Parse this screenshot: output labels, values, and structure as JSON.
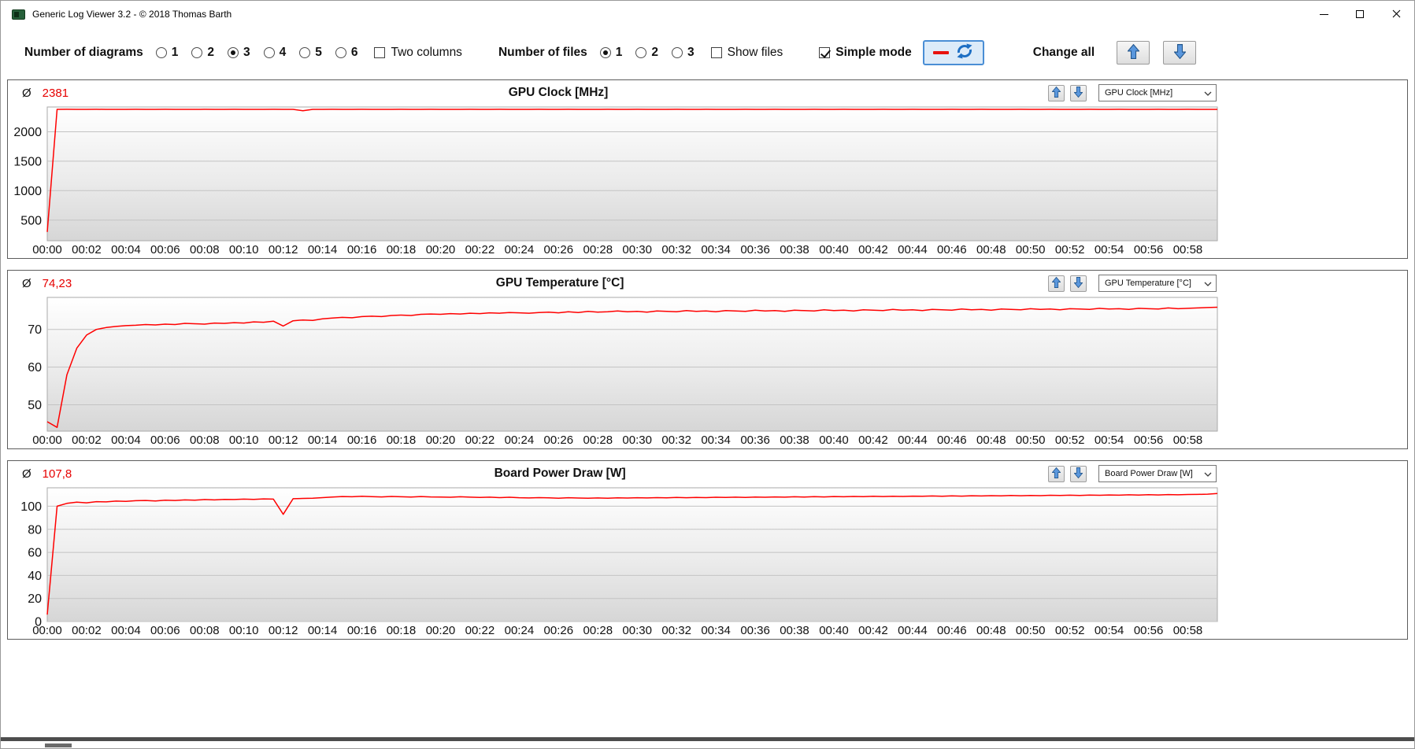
{
  "window": {
    "title": "Generic Log Viewer 3.2 - © 2018 Thomas Barth",
    "controls": [
      "minimize",
      "maximize",
      "close"
    ]
  },
  "toolbar": {
    "diagrams_label": "Number of diagrams",
    "diagram_options": [
      "1",
      "2",
      "3",
      "4",
      "5",
      "6"
    ],
    "diagrams_selected": "3",
    "two_columns": {
      "label": "Two columns",
      "checked": false
    },
    "files_label": "Number of files",
    "file_options": [
      "1",
      "2",
      "3"
    ],
    "files_selected": "1",
    "show_files": {
      "label": "Show files",
      "checked": false
    },
    "simple_mode": {
      "label": "Simple mode",
      "checked": true
    },
    "change_all_label": "Change all",
    "line_sample_color": "#e8120e",
    "arrow_color": "#5a97dd"
  },
  "time_ticks": [
    "00:00",
    "00:02",
    "00:04",
    "00:06",
    "00:08",
    "00:10",
    "00:12",
    "00:14",
    "00:16",
    "00:18",
    "00:20",
    "00:22",
    "00:24",
    "00:26",
    "00:28",
    "00:30",
    "00:32",
    "00:34",
    "00:36",
    "00:38",
    "00:40",
    "00:42",
    "00:44",
    "00:46",
    "00:48",
    "00:50",
    "00:52",
    "00:54",
    "00:56",
    "00:58"
  ],
  "chart_data": [
    {
      "id": 0,
      "type": "line",
      "title": "GPU Clock [MHz]",
      "avg_symbol": "Ø",
      "avg_value": "2381",
      "avg_color": "#e60000",
      "dropdown_value": "GPU Clock [MHz]",
      "line_color": "#ff0000",
      "ylim": [
        150,
        2420
      ],
      "y_ticks": [
        500,
        1000,
        1500,
        2000
      ],
      "x_step_seconds": 30,
      "x_max_seconds": 3570,
      "values": [
        300,
        2380,
        2381,
        2380,
        2380,
        2381,
        2380,
        2380,
        2380,
        2381,
        2380,
        2380,
        2381,
        2380,
        2380,
        2380,
        2381,
        2380,
        2380,
        2381,
        2380,
        2380,
        2380,
        2381,
        2380,
        2380,
        2356,
        2380,
        2380,
        2381,
        2380,
        2380,
        2381,
        2380,
        2380,
        2380,
        2381,
        2380,
        2380,
        2381,
        2380,
        2380,
        2380,
        2381,
        2380,
        2380,
        2381,
        2380,
        2380,
        2380,
        2381,
        2380,
        2380,
        2381,
        2380,
        2380,
        2380,
        2381,
        2380,
        2380,
        2381,
        2380,
        2380,
        2380,
        2381,
        2380,
        2380,
        2381,
        2380,
        2380,
        2380,
        2381,
        2380,
        2380,
        2381,
        2380,
        2380,
        2380,
        2381,
        2380,
        2380,
        2381,
        2380,
        2380,
        2380,
        2381,
        2380,
        2380,
        2381,
        2380,
        2380,
        2380,
        2381,
        2380,
        2380,
        2381,
        2380,
        2380,
        2380,
        2381,
        2380,
        2380,
        2381,
        2380,
        2380,
        2380,
        2381,
        2380,
        2380,
        2381,
        2380,
        2380,
        2380,
        2381,
        2380,
        2380,
        2381,
        2380,
        2380,
        2380
      ]
    },
    {
      "id": 1,
      "type": "line",
      "title": "GPU Temperature [°C]",
      "avg_symbol": "Ø",
      "avg_value": "74,23",
      "avg_color": "#e60000",
      "dropdown_value": "GPU Temperature [°C]",
      "line_color": "#ff0000",
      "ylim": [
        43,
        78.5
      ],
      "y_ticks": [
        50,
        60,
        70
      ],
      "x_step_seconds": 30,
      "x_max_seconds": 3570,
      "values": [
        45.5,
        44.0,
        58.0,
        65.0,
        68.5,
        70.0,
        70.5,
        70.8,
        71.0,
        71.1,
        71.3,
        71.2,
        71.4,
        71.3,
        71.6,
        71.5,
        71.4,
        71.7,
        71.6,
        71.8,
        71.7,
        72.0,
        71.9,
        72.2,
        70.9,
        72.3,
        72.5,
        72.4,
        72.8,
        73.0,
        73.2,
        73.1,
        73.4,
        73.5,
        73.4,
        73.7,
        73.8,
        73.7,
        74.0,
        74.1,
        74.0,
        74.2,
        74.1,
        74.3,
        74.2,
        74.4,
        74.3,
        74.5,
        74.4,
        74.3,
        74.5,
        74.6,
        74.4,
        74.7,
        74.5,
        74.8,
        74.6,
        74.7,
        74.9,
        74.7,
        74.8,
        74.6,
        74.9,
        74.8,
        74.7,
        75.0,
        74.8,
        74.9,
        74.7,
        75.0,
        74.9,
        74.8,
        75.1,
        74.9,
        75.0,
        74.8,
        75.1,
        75.0,
        74.9,
        75.2,
        75.0,
        75.1,
        74.9,
        75.2,
        75.1,
        75.0,
        75.3,
        75.1,
        75.2,
        75.0,
        75.3,
        75.2,
        75.1,
        75.4,
        75.2,
        75.3,
        75.1,
        75.4,
        75.3,
        75.2,
        75.5,
        75.3,
        75.4,
        75.2,
        75.5,
        75.4,
        75.3,
        75.6,
        75.4,
        75.5,
        75.3,
        75.6,
        75.5,
        75.4,
        75.7,
        75.5,
        75.6,
        75.7,
        75.8,
        75.9
      ]
    },
    {
      "id": 2,
      "type": "line",
      "title": "Board Power Draw [W]",
      "avg_symbol": "Ø",
      "avg_value": "107,8",
      "avg_color": "#e60000",
      "dropdown_value": "Board Power Draw [W]",
      "line_color": "#ff0000",
      "ylim": [
        0,
        116
      ],
      "y_ticks": [
        0,
        20,
        40,
        60,
        80,
        100
      ],
      "x_step_seconds": 30,
      "x_max_seconds": 3570,
      "values": [
        6.0,
        100.0,
        102.5,
        103.5,
        103.0,
        104.0,
        103.8,
        104.5,
        104.2,
        104.8,
        105.0,
        104.6,
        105.2,
        105.0,
        105.5,
        105.2,
        105.8,
        105.5,
        106.0,
        105.8,
        106.2,
        106.0,
        106.4,
        106.2,
        93.0,
        106.5,
        106.8,
        107.0,
        107.5,
        108.0,
        108.4,
        108.2,
        108.6,
        108.3,
        108.1,
        108.5,
        108.2,
        108.0,
        108.4,
        108.1,
        108.0,
        107.8,
        108.2,
        107.9,
        107.6,
        107.9,
        107.5,
        107.8,
        107.4,
        107.2,
        107.5,
        107.3,
        107.0,
        107.4,
        107.1,
        106.9,
        107.2,
        107.0,
        107.3,
        107.1,
        107.4,
        107.2,
        107.5,
        107.3,
        107.6,
        107.4,
        107.7,
        107.5,
        107.8,
        107.6,
        107.9,
        107.7,
        108.0,
        107.8,
        108.1,
        107.9,
        108.2,
        108.0,
        108.3,
        108.1,
        108.4,
        108.2,
        108.5,
        108.3,
        108.6,
        108.4,
        108.7,
        108.5,
        108.8,
        108.6,
        108.9,
        108.7,
        109.0,
        108.8,
        109.1,
        108.9,
        109.2,
        109.0,
        109.3,
        109.1,
        109.4,
        109.2,
        109.5,
        109.3,
        109.6,
        109.4,
        109.7,
        109.5,
        109.8,
        109.6,
        109.9,
        109.7,
        110.0,
        109.8,
        110.1,
        109.9,
        110.2,
        110.3,
        110.5,
        111.0
      ]
    }
  ]
}
